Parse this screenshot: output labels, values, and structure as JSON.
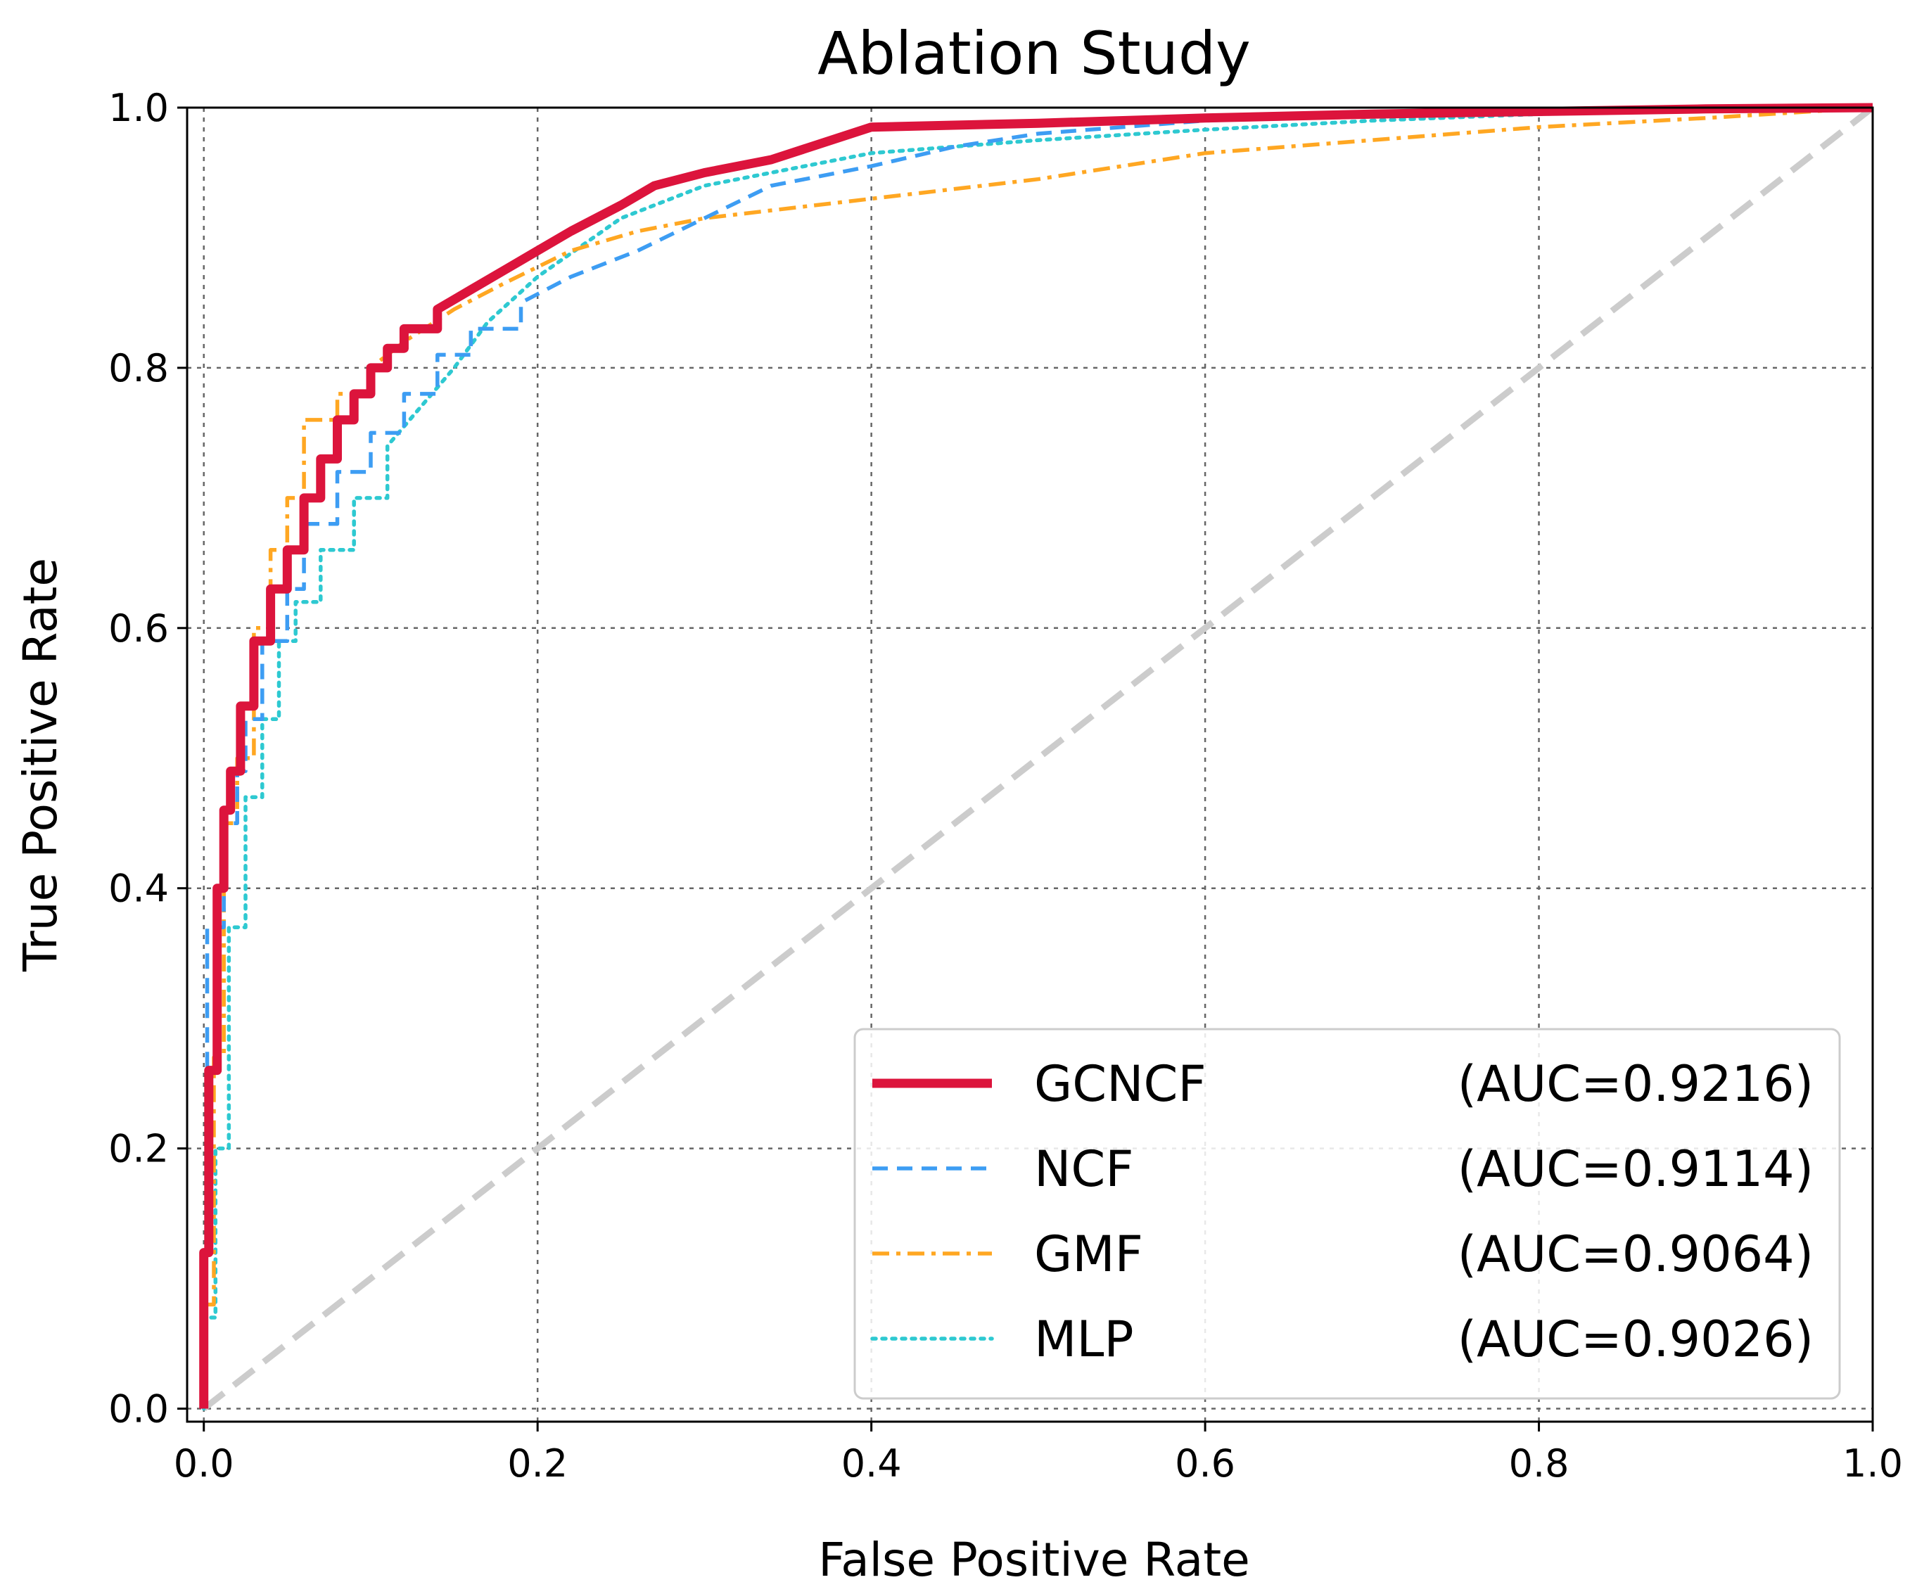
{
  "chart_data": {
    "type": "line",
    "title": "Ablation Study",
    "xlabel": "False Positive Rate",
    "ylabel": "True Positive Rate",
    "xlim": [
      -0.01,
      1.0
    ],
    "ylim": [
      -0.01,
      1.0
    ],
    "grid": true,
    "legend_position": "bottom-right",
    "xticks": [
      {
        "value": 0.0,
        "label": "0.0"
      },
      {
        "value": 0.2,
        "label": "0.2"
      },
      {
        "value": 0.4,
        "label": "0.4"
      },
      {
        "value": 0.6,
        "label": "0.6"
      },
      {
        "value": 0.8,
        "label": "0.8"
      },
      {
        "value": 1.0,
        "label": "1.0"
      }
    ],
    "yticks": [
      {
        "value": 0.0,
        "label": "0.0"
      },
      {
        "value": 0.2,
        "label": "0.2"
      },
      {
        "value": 0.4,
        "label": "0.4"
      },
      {
        "value": 0.6,
        "label": "0.6"
      },
      {
        "value": 0.8,
        "label": "0.8"
      },
      {
        "value": 1.0,
        "label": "1.0"
      }
    ],
    "series": [
      {
        "name": "GCNCF",
        "auc_label": "(AUC=0.9216)",
        "color": "#dc143c",
        "style": "solid",
        "x": [
          0.0,
          0.0,
          0.003,
          0.003,
          0.008,
          0.008,
          0.012,
          0.012,
          0.016,
          0.016,
          0.022,
          0.022,
          0.03,
          0.03,
          0.04,
          0.04,
          0.05,
          0.05,
          0.06,
          0.06,
          0.07,
          0.07,
          0.08,
          0.08,
          0.09,
          0.09,
          0.1,
          0.1,
          0.11,
          0.11,
          0.12,
          0.12,
          0.14,
          0.14,
          0.16,
          0.18,
          0.2,
          0.22,
          0.25,
          0.27,
          0.3,
          0.34,
          0.4,
          0.5,
          0.6,
          0.7,
          0.8,
          0.9,
          1.0
        ],
        "y": [
          0.0,
          0.12,
          0.12,
          0.26,
          0.26,
          0.4,
          0.4,
          0.46,
          0.46,
          0.49,
          0.49,
          0.54,
          0.54,
          0.59,
          0.59,
          0.63,
          0.63,
          0.66,
          0.66,
          0.7,
          0.7,
          0.73,
          0.73,
          0.76,
          0.76,
          0.78,
          0.78,
          0.8,
          0.8,
          0.815,
          0.815,
          0.83,
          0.83,
          0.845,
          0.86,
          0.875,
          0.89,
          0.905,
          0.925,
          0.94,
          0.95,
          0.96,
          0.985,
          0.988,
          0.992,
          0.995,
          0.997,
          0.999,
          1.0
        ]
      },
      {
        "name": "NCF",
        "auc_label": "(AUC=0.9114)",
        "color": "#3d9df3",
        "style": "dashed",
        "x": [
          0.0,
          0.0,
          0.002,
          0.002,
          0.012,
          0.012,
          0.02,
          0.02,
          0.025,
          0.025,
          0.035,
          0.035,
          0.05,
          0.05,
          0.06,
          0.06,
          0.08,
          0.08,
          0.1,
          0.1,
          0.12,
          0.12,
          0.14,
          0.14,
          0.16,
          0.16,
          0.19,
          0.19,
          0.22,
          0.26,
          0.3,
          0.34,
          0.4,
          0.45,
          0.5,
          0.6,
          0.7,
          0.8,
          0.9,
          1.0
        ],
        "y": [
          0.0,
          0.12,
          0.12,
          0.37,
          0.37,
          0.45,
          0.45,
          0.49,
          0.49,
          0.53,
          0.53,
          0.59,
          0.59,
          0.63,
          0.63,
          0.68,
          0.68,
          0.72,
          0.72,
          0.75,
          0.75,
          0.78,
          0.78,
          0.81,
          0.81,
          0.83,
          0.83,
          0.85,
          0.87,
          0.89,
          0.915,
          0.94,
          0.955,
          0.97,
          0.98,
          0.99,
          0.995,
          0.997,
          0.999,
          1.0
        ]
      },
      {
        "name": "GMF",
        "auc_label": "(AUC=0.9064)",
        "color": "#ffa722",
        "style": "dashdot",
        "x": [
          0.0,
          0.0,
          0.006,
          0.006,
          0.012,
          0.012,
          0.02,
          0.02,
          0.03,
          0.03,
          0.04,
          0.04,
          0.05,
          0.05,
          0.06,
          0.06,
          0.08,
          0.08,
          0.1,
          0.1,
          0.12,
          0.15,
          0.18,
          0.22,
          0.26,
          0.3,
          0.4,
          0.5,
          0.55,
          0.6,
          0.7,
          0.8,
          0.9,
          1.0
        ],
        "y": [
          0.0,
          0.08,
          0.08,
          0.27,
          0.27,
          0.45,
          0.45,
          0.5,
          0.5,
          0.6,
          0.6,
          0.66,
          0.66,
          0.7,
          0.7,
          0.76,
          0.76,
          0.78,
          0.78,
          0.8,
          0.82,
          0.845,
          0.865,
          0.89,
          0.905,
          0.915,
          0.93,
          0.945,
          0.955,
          0.965,
          0.975,
          0.985,
          0.992,
          1.0
        ]
      },
      {
        "name": "MLP",
        "auc_label": "(AUC=0.9026)",
        "color": "#2ec9d1",
        "style": "dotted",
        "x": [
          0.0,
          0.0,
          0.007,
          0.007,
          0.015,
          0.015,
          0.025,
          0.025,
          0.035,
          0.035,
          0.045,
          0.045,
          0.055,
          0.055,
          0.07,
          0.07,
          0.09,
          0.09,
          0.11,
          0.11,
          0.13,
          0.15,
          0.17,
          0.2,
          0.25,
          0.3,
          0.4,
          0.5,
          0.6,
          0.7,
          0.8,
          0.9,
          1.0
        ],
        "y": [
          0.0,
          0.07,
          0.07,
          0.2,
          0.2,
          0.37,
          0.37,
          0.47,
          0.47,
          0.53,
          0.53,
          0.59,
          0.59,
          0.62,
          0.62,
          0.66,
          0.66,
          0.7,
          0.7,
          0.74,
          0.77,
          0.8,
          0.835,
          0.87,
          0.915,
          0.94,
          0.965,
          0.975,
          0.983,
          0.99,
          0.995,
          0.998,
          1.0
        ]
      }
    ],
    "reference_line": {
      "x": [
        0,
        1
      ],
      "y": [
        0,
        1
      ],
      "color": "#cccccc",
      "style": "dashed"
    }
  }
}
